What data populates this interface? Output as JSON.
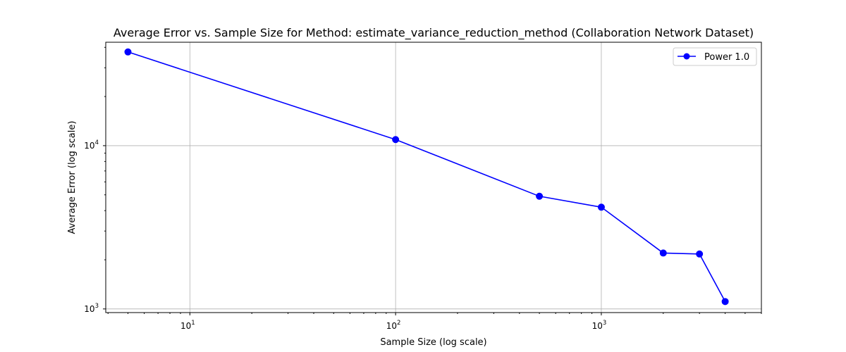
{
  "chart_data": {
    "type": "line",
    "title": "Average Error vs. Sample Size for Method: estimate_variance_reduction_method (Collaboration Network Dataset)",
    "xlabel": "Sample Size (log scale)",
    "ylabel": "Average Error (log scale)",
    "xscale": "log",
    "yscale": "log",
    "xlim": [
      3.9,
      6000
    ],
    "ylim": [
      950,
      43000
    ],
    "x_major_ticks": [
      {
        "value": 10,
        "base": "10",
        "exp": "1"
      },
      {
        "value": 100,
        "base": "10",
        "exp": "2"
      },
      {
        "value": 1000,
        "base": "10",
        "exp": "3"
      }
    ],
    "y_major_ticks": [
      {
        "value": 1000,
        "base": "10",
        "exp": "3"
      },
      {
        "value": 10000,
        "base": "10",
        "exp": "4"
      }
    ],
    "grid": true,
    "legend_position": "top-right",
    "series": [
      {
        "name": "Power 1.0",
        "color": "#0000ff",
        "marker": "circle",
        "x": [
          5,
          100,
          500,
          1000,
          2000,
          3000,
          4000
        ],
        "y": [
          37500,
          10900,
          4900,
          4200,
          2200,
          2170,
          1110
        ]
      }
    ]
  }
}
